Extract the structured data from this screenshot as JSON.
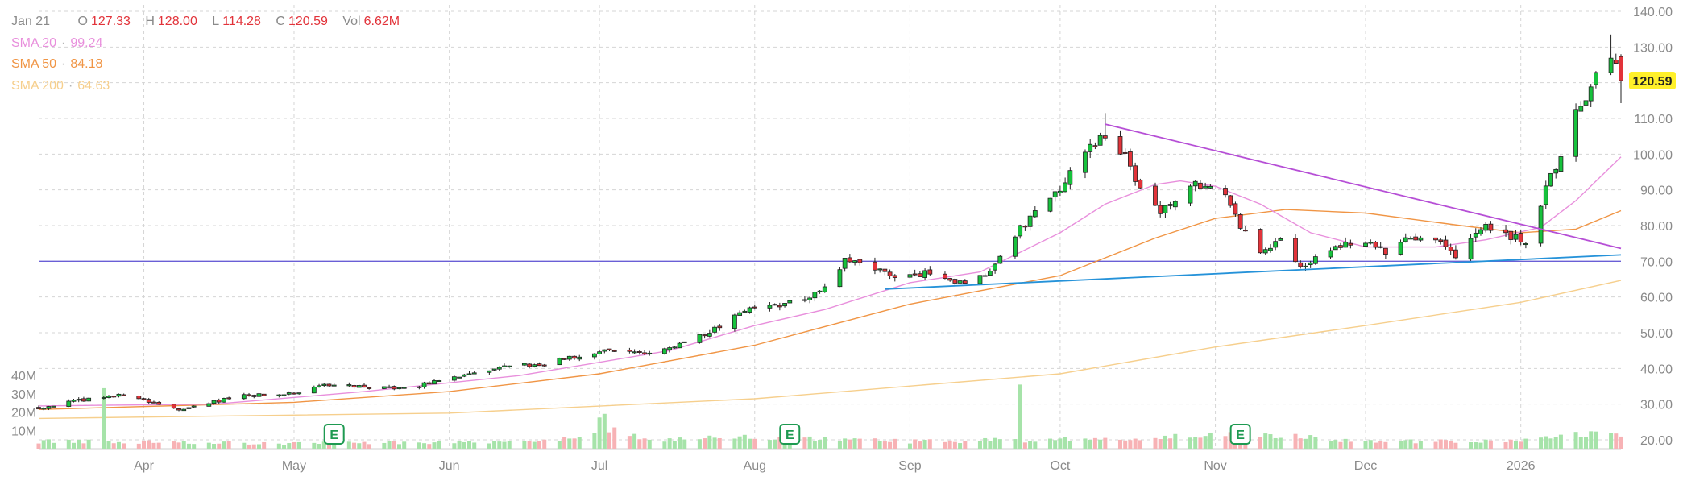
{
  "ohlc_readout": {
    "date": "Jan 21",
    "o_label": "O",
    "o": "127.33",
    "h_label": "H",
    "h": "128.00",
    "l_label": "L",
    "l": "114.28",
    "c_label": "C",
    "c": "120.59",
    "vol_label": "Vol",
    "vol": "6.62M"
  },
  "indicators": [
    {
      "label": "SMA 20",
      "value": "99.24",
      "color": "#e88fdc"
    },
    {
      "label": "SMA 50",
      "value": "84.18",
      "color": "#f09545"
    },
    {
      "label": "SMA 200",
      "value": "64.63",
      "color": "#f6cf8d"
    }
  ],
  "last_price": {
    "label": "120.59",
    "bg_color": "#fff02a"
  },
  "earnings_marker": "E",
  "colors": {
    "up": "#16c23c",
    "down": "#e2333a",
    "trendline_upper": "#b64fd6",
    "trendline_lower": "#2592d9",
    "horizontal_line": "#6a5fd6",
    "grid": "#d5d5d5",
    "axis_text": "#8a8a8a",
    "earnings": "#1e9a51"
  },
  "chart_data": {
    "type": "candlestick",
    "x_axis_labels": [
      "Apr",
      "May",
      "Jun",
      "Jul",
      "Aug",
      "Sep",
      "Oct",
      "Nov",
      "Dec",
      "2026"
    ],
    "x_axis_dates": [
      "2025-04-01",
      "2025-05-01",
      "2025-06-01",
      "2025-07-01",
      "2025-08-01",
      "2025-09-01",
      "2025-10-01",
      "2025-11-01",
      "2025-12-01",
      "2026-01-01"
    ],
    "x_range": [
      "2025-03-11",
      "2026-01-21"
    ],
    "y_price_ticks": [
      "140.00",
      "130.00",
      "120.00",
      "110.00",
      "100.00",
      "90.00",
      "80.00",
      "70.00",
      "60.00",
      "50.00",
      "40.00",
      "30.00",
      "20.00"
    ],
    "y_price_range": [
      17,
      142
    ],
    "y_volume_ticks": [
      "40M",
      "30M",
      "20M",
      "10M"
    ],
    "y_volume_values": [
      40,
      30,
      20,
      10
    ],
    "volume_unit": "M",
    "grid": true,
    "earnings_dates": [
      "2025-05-09",
      "2025-08-08",
      "2025-11-06"
    ],
    "horizontal_line": {
      "y": 70.0
    },
    "trendlines": [
      {
        "from": [
          "2025-10-10",
          108.4
        ],
        "to": [
          "2026-01-21",
          73.6
        ]
      },
      {
        "from": [
          "2025-08-27",
          62.2
        ],
        "to": [
          "2026-01-21",
          71.8
        ]
      }
    ],
    "price_path": [
      [
        "2025-03-11",
        29.0
      ],
      [
        "2025-03-21",
        31.5
      ],
      [
        "2025-03-28",
        32.8
      ],
      [
        "2025-04-04",
        30.0
      ],
      [
        "2025-04-09",
        28.4
      ],
      [
        "2025-04-14",
        30.5
      ],
      [
        "2025-04-21",
        32.3
      ],
      [
        "2025-05-01",
        33.0
      ],
      [
        "2025-05-09",
        35.8
      ],
      [
        "2025-05-16",
        34.5
      ],
      [
        "2025-05-23",
        34.5
      ],
      [
        "2025-05-30",
        36.5
      ],
      [
        "2025-06-06",
        38.5
      ],
      [
        "2025-06-13",
        40.5
      ],
      [
        "2025-06-20",
        41.5
      ],
      [
        "2025-06-27",
        43.5
      ],
      [
        "2025-07-03",
        45.5
      ],
      [
        "2025-07-10",
        44.0
      ],
      [
        "2025-07-17",
        47.0
      ],
      [
        "2025-07-24",
        51.0
      ],
      [
        "2025-07-31",
        57.5
      ],
      [
        "2025-08-07",
        57.8
      ],
      [
        "2025-08-14",
        61.0
      ],
      [
        "2025-08-19",
        70.0
      ],
      [
        "2025-08-25",
        67.5
      ],
      [
        "2025-08-29",
        66.0
      ],
      [
        "2025-09-05",
        66.5
      ],
      [
        "2025-09-12",
        64.0
      ],
      [
        "2025-09-16",
        66.0
      ],
      [
        "2025-09-19",
        72.0
      ],
      [
        "2025-09-23",
        79.5
      ],
      [
        "2025-09-29",
        87.0
      ],
      [
        "2025-10-06",
        100.5
      ],
      [
        "2025-10-10",
        106.0
      ],
      [
        "2025-10-14",
        99.0
      ],
      [
        "2025-10-17",
        91.0
      ],
      [
        "2025-10-21",
        84.0
      ],
      [
        "2025-10-24",
        87.0
      ],
      [
        "2025-10-28",
        91.0
      ],
      [
        "2025-11-03",
        89.0
      ],
      [
        "2025-11-06",
        79.0
      ],
      [
        "2025-11-10",
        73.0
      ],
      [
        "2025-11-14",
        76.0
      ],
      [
        "2025-11-18",
        69.0
      ],
      [
        "2025-11-21",
        71.0
      ],
      [
        "2025-11-25",
        74.0
      ],
      [
        "2025-12-01",
        75.0
      ],
      [
        "2025-12-05",
        73.0
      ],
      [
        "2025-12-09",
        77.0
      ],
      [
        "2025-12-15",
        77.0
      ],
      [
        "2025-12-19",
        71.0
      ],
      [
        "2025-12-24",
        80.0
      ],
      [
        "2025-12-29",
        77.0
      ],
      [
        "2026-01-02",
        76.0
      ],
      [
        "2026-01-06",
        90.0
      ],
      [
        "2026-01-09",
        100.0
      ],
      [
        "2026-01-12",
        112.0
      ],
      [
        "2026-01-15",
        119.0
      ],
      [
        "2026-01-19",
        127.5
      ],
      [
        "2026-01-21",
        120.59
      ]
    ],
    "volume_path": [
      [
        "2025-03-11",
        4
      ],
      [
        "2025-05-01",
        3
      ],
      [
        "2025-06-23",
        4
      ],
      [
        "2025-07-01",
        11
      ],
      [
        "2025-07-10",
        5
      ],
      [
        "2025-08-01",
        6
      ],
      [
        "2025-09-01",
        4
      ],
      [
        "2025-10-01",
        5
      ],
      [
        "2025-10-15",
        5
      ],
      [
        "2025-11-06",
        8
      ],
      [
        "2025-12-01",
        4
      ],
      [
        "2026-01-01",
        4
      ],
      [
        "2026-01-15",
        8
      ],
      [
        "2026-01-21",
        6.62
      ]
    ],
    "volume_spikes": [
      [
        "2025-03-24",
        33
      ],
      [
        "2025-09-23",
        35
      ],
      [
        "2025-07-01",
        17
      ],
      [
        "2025-07-02",
        19
      ]
    ],
    "sma20_path": [
      [
        "2025-03-11",
        29.5
      ],
      [
        "2025-04-15",
        30.0
      ],
      [
        "2025-05-15",
        33.5
      ],
      [
        "2025-06-15",
        38.0
      ],
      [
        "2025-07-15",
        45.0
      ],
      [
        "2025-08-01",
        52.0
      ],
      [
        "2025-08-15",
        56.5
      ],
      [
        "2025-09-01",
        64.0
      ],
      [
        "2025-09-15",
        67.0
      ],
      [
        "2025-10-01",
        78.0
      ],
      [
        "2025-10-10",
        86.0
      ],
      [
        "2025-10-20",
        91.5
      ],
      [
        "2025-10-25",
        92.5
      ],
      [
        "2025-11-01",
        91.0
      ],
      [
        "2025-11-10",
        86.0
      ],
      [
        "2025-11-20",
        78.0
      ],
      [
        "2025-12-01",
        74.0
      ],
      [
        "2025-12-15",
        74.0
      ],
      [
        "2025-12-25",
        76.0
      ],
      [
        "2026-01-05",
        79.5
      ],
      [
        "2026-01-12",
        87.0
      ],
      [
        "2026-01-21",
        99.24
      ]
    ],
    "sma50_path": [
      [
        "2025-03-11",
        28.5
      ],
      [
        "2025-05-01",
        30.5
      ],
      [
        "2025-06-01",
        33.5
      ],
      [
        "2025-07-01",
        38.5
      ],
      [
        "2025-08-01",
        46.5
      ],
      [
        "2025-09-01",
        58.0
      ],
      [
        "2025-10-01",
        66.0
      ],
      [
        "2025-10-20",
        76.5
      ],
      [
        "2025-11-01",
        82.0
      ],
      [
        "2025-11-15",
        84.5
      ],
      [
        "2025-12-01",
        83.5
      ],
      [
        "2025-12-20",
        80.0
      ],
      [
        "2026-01-01",
        78.0
      ],
      [
        "2026-01-12",
        79.0
      ],
      [
        "2026-01-21",
        84.18
      ]
    ],
    "sma200_path": [
      [
        "2025-03-11",
        26.0
      ],
      [
        "2025-06-01",
        27.5
      ],
      [
        "2025-08-01",
        31.5
      ],
      [
        "2025-10-01",
        38.5
      ],
      [
        "2025-11-01",
        46.0
      ],
      [
        "2025-12-01",
        52.0
      ],
      [
        "2026-01-01",
        58.5
      ],
      [
        "2026-01-21",
        64.63
      ]
    ]
  }
}
